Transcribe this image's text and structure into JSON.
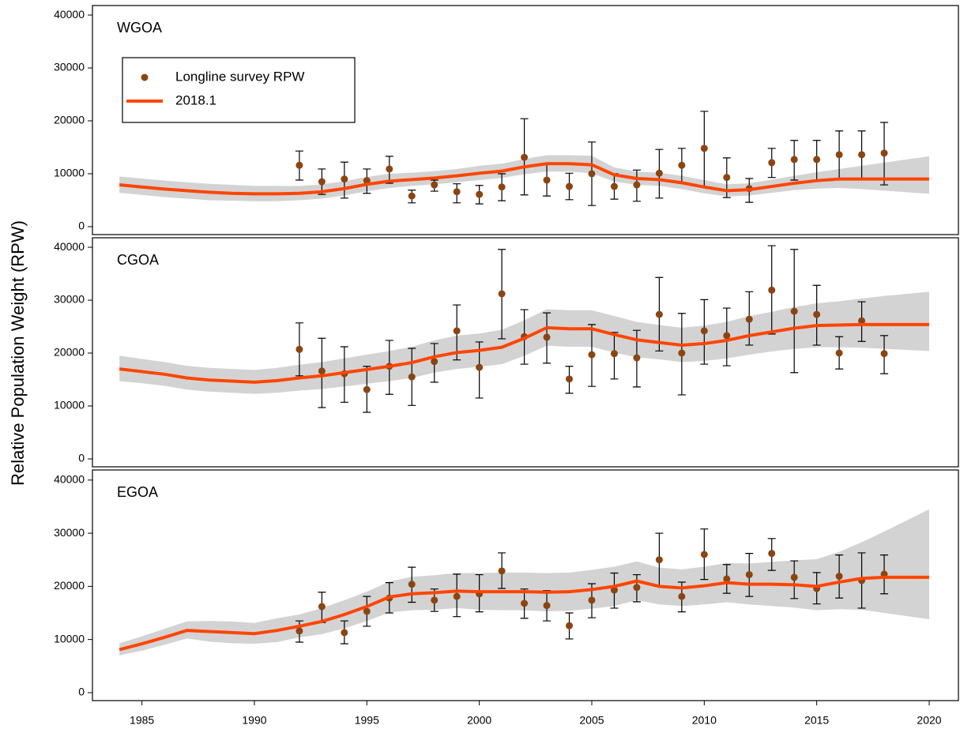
{
  "ylabel": "Relative Population Weight (RPW)",
  "chart_data": [
    {
      "type": "line",
      "title": "WGOA",
      "legend": "upper left",
      "xlim": [
        1982.8,
        2021.3
      ],
      "ylim": [
        -1500,
        41800
      ],
      "yticks": [
        0,
        10000,
        20000,
        30000,
        40000
      ],
      "series": [
        {
          "name": "Longline survey RPW",
          "type": "scatter",
          "color": "#8b4513",
          "x": [
            1992,
            1993,
            1994,
            1995,
            1996,
            1997,
            1998,
            1999,
            2000,
            2001,
            2002,
            2003,
            2004,
            2005,
            2006,
            2007,
            2008,
            2009,
            2010,
            2011,
            2012,
            2013,
            2014,
            2015,
            2016,
            2017,
            2018
          ],
          "values": [
            11600,
            8500,
            9000,
            8700,
            10900,
            5800,
            7900,
            6600,
            6100,
            7500,
            13100,
            8800,
            7600,
            10000,
            7600,
            7900,
            10100,
            11600,
            14800,
            9300,
            7200,
            12100,
            12700,
            12700,
            13600,
            13600,
            13900
          ],
          "lower": [
            8800,
            6100,
            5400,
            6300,
            8200,
            4500,
            6700,
            4500,
            4300,
            4900,
            6000,
            5800,
            5100,
            4000,
            5200,
            4800,
            5400,
            8200,
            7500,
            5500,
            4600,
            9300,
            8800,
            8700,
            9000,
            9100,
            7900
          ],
          "upper": [
            14300,
            10900,
            12200,
            10900,
            13300,
            6900,
            8800,
            8100,
            7800,
            10000,
            20400,
            11800,
            10100,
            16000,
            10000,
            10700,
            14600,
            14800,
            21800,
            13000,
            9100,
            14800,
            16300,
            16300,
            18100,
            18100,
            19700
          ]
        },
        {
          "name": "2018.1",
          "type": "line",
          "color": "#ff4500",
          "band_color": "#d3d3d3",
          "x": [
            1984,
            1985,
            1986,
            1987,
            1988,
            1989,
            1990,
            1991,
            1992,
            1993,
            1994,
            1995,
            1996,
            1997,
            1998,
            1999,
            2000,
            2001,
            2002,
            2003,
            2004,
            2005,
            2006,
            2007,
            2008,
            2009,
            2010,
            2011,
            2012,
            2013,
            2014,
            2015,
            2016,
            2017,
            2018,
            2019,
            2020
          ],
          "values": [
            7900,
            7500,
            7100,
            6800,
            6500,
            6300,
            6200,
            6200,
            6300,
            6600,
            7200,
            8000,
            8600,
            8900,
            9200,
            9600,
            10100,
            10500,
            11300,
            11900,
            11900,
            11700,
            9800,
            9100,
            8900,
            8300,
            7500,
            6800,
            7000,
            7600,
            8200,
            8700,
            9000,
            9000,
            9000,
            9000,
            9000
          ],
          "lower": [
            6400,
            6000,
            5600,
            5300,
            5000,
            4900,
            4800,
            4800,
            5000,
            5300,
            5900,
            6700,
            7300,
            7700,
            8000,
            8400,
            8800,
            9200,
            9900,
            10400,
            10400,
            10100,
            8500,
            7900,
            7700,
            7100,
            6300,
            5700,
            5900,
            6400,
            6900,
            7200,
            7300,
            7100,
            6800,
            6500,
            6200
          ],
          "upper": [
            9500,
            9100,
            8700,
            8400,
            8100,
            7900,
            7700,
            7700,
            7700,
            8000,
            8600,
            9400,
            10000,
            10200,
            10500,
            10900,
            11500,
            11900,
            12800,
            13500,
            13500,
            13400,
            11200,
            10400,
            10200,
            9600,
            8800,
            8000,
            8200,
            8900,
            9600,
            10300,
            10900,
            11500,
            12100,
            12700,
            13300
          ]
        }
      ]
    },
    {
      "type": "line",
      "title": "CGOA",
      "xlim": [
        1982.8,
        2021.3
      ],
      "ylim": [
        -1500,
        41800
      ],
      "yticks": [
        0,
        10000,
        20000,
        30000,
        40000
      ],
      "series": [
        {
          "type": "scatter",
          "color": "#8b4513",
          "x": [
            1992,
            1993,
            1994,
            1995,
            1996,
            1997,
            1998,
            1999,
            2000,
            2001,
            2002,
            2003,
            2004,
            2005,
            2006,
            2007,
            2008,
            2009,
            2010,
            2011,
            2012,
            2013,
            2014,
            2015,
            2016,
            2017,
            2018
          ],
          "values": [
            20700,
            16600,
            16100,
            13100,
            17500,
            15500,
            18400,
            24200,
            17300,
            31200,
            23100,
            23000,
            15100,
            19700,
            19900,
            19100,
            27300,
            20000,
            24200,
            23300,
            26400,
            31900,
            27900,
            27300,
            20000,
            26100,
            19900
          ],
          "lower": [
            15700,
            9700,
            10700,
            8800,
            12200,
            10100,
            14500,
            18700,
            11500,
            22700,
            17900,
            18100,
            12400,
            13700,
            15100,
            13600,
            20400,
            12100,
            17900,
            17600,
            21500,
            23600,
            16300,
            21500,
            17000,
            22200,
            16100
          ],
          "upper": [
            25700,
            22800,
            21200,
            17500,
            22400,
            20900,
            21800,
            29100,
            22100,
            39600,
            28200,
            27600,
            17500,
            25400,
            23900,
            24300,
            34300,
            27500,
            30100,
            28500,
            31600,
            40300,
            39600,
            32800,
            23100,
            29700,
            23300
          ]
        },
        {
          "type": "line",
          "color": "#ff4500",
          "band_color": "#d3d3d3",
          "x": [
            1984,
            1985,
            1986,
            1987,
            1988,
            1989,
            1990,
            1991,
            1992,
            1993,
            1994,
            1995,
            1996,
            1997,
            1998,
            1999,
            2000,
            2001,
            2002,
            2003,
            2004,
            2005,
            2006,
            2007,
            2008,
            2009,
            2010,
            2011,
            2012,
            2013,
            2014,
            2015,
            2016,
            2017,
            2018,
            2019,
            2020
          ],
          "values": [
            17000,
            16500,
            16000,
            15300,
            14900,
            14700,
            14500,
            14800,
            15300,
            15700,
            16300,
            16900,
            17500,
            18200,
            19300,
            20100,
            20500,
            21100,
            22800,
            24800,
            24600,
            24600,
            23500,
            22500,
            22000,
            21500,
            21800,
            22400,
            23300,
            24000,
            24700,
            25200,
            25300,
            25400,
            25400,
            25400,
            25400
          ],
          "lower": [
            14700,
            14300,
            13800,
            13100,
            12700,
            12500,
            12300,
            12500,
            12900,
            13200,
            13700,
            14200,
            14700,
            15300,
            16300,
            17000,
            17400,
            17900,
            19500,
            21400,
            21200,
            21200,
            20100,
            19200,
            18800,
            18300,
            18500,
            19000,
            19700,
            20300,
            20800,
            21100,
            21100,
            21000,
            20800,
            20600,
            20400
          ],
          "upper": [
            19500,
            18900,
            18300,
            17600,
            17200,
            17000,
            16800,
            17200,
            17800,
            18300,
            19000,
            19700,
            20400,
            21200,
            22400,
            23300,
            23700,
            24400,
            26200,
            28300,
            28100,
            28100,
            27000,
            25900,
            25300,
            24800,
            25200,
            25900,
            27000,
            27800,
            28700,
            29400,
            29800,
            30300,
            30800,
            31200,
            31600
          ]
        }
      ]
    },
    {
      "type": "line",
      "title": "EGOA",
      "xlim": [
        1982.8,
        2021.3
      ],
      "ylim": [
        -1500,
        41900
      ],
      "yticks": [
        0,
        10000,
        20000,
        30000,
        40000
      ],
      "xticks": [
        1985,
        1990,
        1995,
        2000,
        2005,
        2010,
        2015,
        2020
      ],
      "series": [
        {
          "type": "scatter",
          "color": "#8b4513",
          "x": [
            1992,
            1993,
            1994,
            1995,
            1996,
            1997,
            1998,
            1999,
            2000,
            2001,
            2002,
            2003,
            2004,
            2005,
            2006,
            2007,
            2008,
            2009,
            2010,
            2011,
            2012,
            2013,
            2014,
            2015,
            2016,
            2017,
            2018
          ],
          "values": [
            11600,
            16200,
            11300,
            15300,
            17800,
            20400,
            17400,
            18100,
            18600,
            22900,
            16800,
            16400,
            12600,
            17400,
            19300,
            19800,
            25000,
            18100,
            26000,
            21400,
            22200,
            26200,
            21700,
            19600,
            21900,
            21100,
            22300
          ],
          "lower": [
            9500,
            13200,
            9200,
            12500,
            15000,
            17000,
            15300,
            14300,
            15200,
            19600,
            14000,
            13500,
            10100,
            14100,
            15900,
            17100,
            20100,
            15200,
            21300,
            18700,
            18100,
            23000,
            17700,
            16700,
            17800,
            15900,
            18600
          ],
          "upper": [
            13500,
            18900,
            13500,
            18100,
            20700,
            23600,
            19500,
            22300,
            22200,
            26300,
            19500,
            19200,
            15000,
            20500,
            22500,
            22200,
            30000,
            20800,
            30800,
            24100,
            26200,
            29000,
            24800,
            22600,
            25900,
            26300,
            25900
          ]
        },
        {
          "type": "line",
          "color": "#ff4500",
          "band_color": "#d3d3d3",
          "x": [
            1984,
            1985,
            1986,
            1987,
            1988,
            1989,
            1990,
            1991,
            1992,
            1993,
            1994,
            1995,
            1996,
            1997,
            1998,
            1999,
            2000,
            2001,
            2002,
            2003,
            2004,
            2005,
            2006,
            2007,
            2008,
            2009,
            2010,
            2011,
            2012,
            2013,
            2014,
            2015,
            2016,
            2017,
            2018,
            2019,
            2020
          ],
          "values": [
            8100,
            9200,
            10400,
            11700,
            11500,
            11300,
            11100,
            11700,
            12500,
            13400,
            14700,
            16200,
            18000,
            18600,
            18800,
            19100,
            19000,
            19000,
            19000,
            18900,
            19000,
            19400,
            20000,
            21000,
            20000,
            19700,
            20100,
            20700,
            20400,
            20400,
            20300,
            20000,
            20800,
            21500,
            21700,
            21700,
            21700
          ],
          "lower": [
            7000,
            7900,
            9000,
            10200,
            9600,
            9300,
            9200,
            9500,
            10400,
            11000,
            12100,
            13500,
            15100,
            15500,
            15600,
            15900,
            15600,
            15500,
            15500,
            15300,
            15400,
            15800,
            16300,
            17400,
            16600,
            16300,
            16600,
            17000,
            16600,
            16300,
            16000,
            15500,
            15700,
            15600,
            15000,
            14400,
            13800
          ],
          "upper": [
            9300,
            10600,
            12000,
            13400,
            13500,
            13400,
            13100,
            14000,
            14700,
            15900,
            17400,
            19000,
            20900,
            21800,
            22100,
            22500,
            22500,
            22600,
            22600,
            22500,
            22600,
            23100,
            23700,
            24700,
            23500,
            23200,
            23700,
            24400,
            24300,
            24600,
            24900,
            25100,
            26500,
            28300,
            30300,
            32400,
            34500
          ]
        }
      ]
    }
  ]
}
